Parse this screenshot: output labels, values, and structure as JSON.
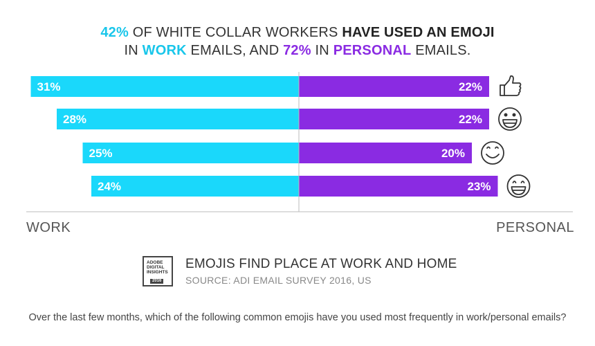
{
  "headline": {
    "line1_pct": "42%",
    "line1_text": "OF WHITE COLLAR WORKERS",
    "line1_bold": "HAVE USED AN EMOJI",
    "line2_in": "IN",
    "line2_work": "WORK",
    "line2_mid": "EMAILS, AND",
    "line2_pct": "72%",
    "line2_in2": "IN",
    "line2_personal": "PERSONAL",
    "line2_end": "EMAILS."
  },
  "chart_data": {
    "type": "bar",
    "orientation": "diverging-horizontal",
    "categories": [
      "thumbs-up",
      "grinning-face",
      "smiling-face",
      "laughing-face"
    ],
    "series": [
      {
        "name": "WORK",
        "values": [
          31,
          28,
          25,
          24
        ],
        "labels": [
          "31%",
          "28%",
          "25%",
          "24%"
        ],
        "color": "#1ad8fb"
      },
      {
        "name": "PERSONAL",
        "values": [
          22,
          22,
          20,
          23
        ],
        "labels": [
          "22%",
          "22%",
          "20%",
          "23%"
        ],
        "color": "#8a2be2"
      }
    ],
    "left_axis_label": "WORK",
    "right_axis_label": "PERSONAL",
    "icons": [
      "thumbs-up-icon",
      "grinning-face-icon",
      "smiling-face-icon",
      "laughing-face-icon"
    ]
  },
  "badge": {
    "line1": "ADOBE",
    "line2": "DIGITAL",
    "line3": "INSIGHTS",
    "year": "2016"
  },
  "source": {
    "title": "EMOJIS FIND PLACE AT WORK AND HOME",
    "subtitle": "SOURCE: ADI EMAIL SURVEY 2016, US"
  },
  "question": "Over the last few months, which of the following common emojis have you used most frequently in work/personal emails?"
}
